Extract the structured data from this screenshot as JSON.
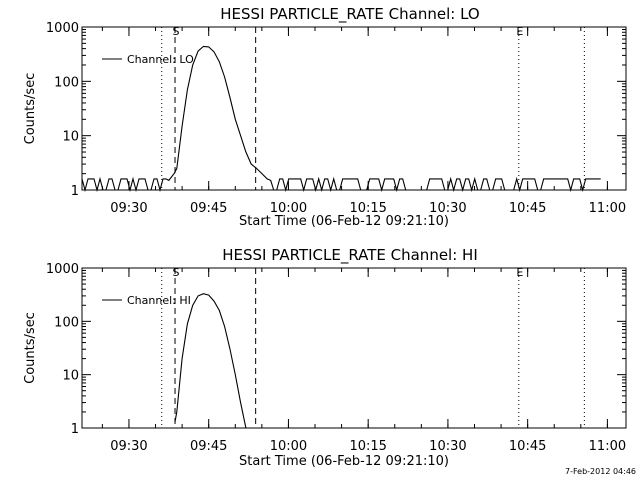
{
  "chart_data": [
    {
      "type": "line",
      "title": "HESSI PARTICLE_RATE Channel: LO",
      "xlabel": "Start Time (06-Feb-12 09:21:10)",
      "ylabel": "Counts/sec",
      "yscale": "log",
      "ylim": [
        1,
        1000
      ],
      "y_ticks": [
        "1",
        "10",
        "100",
        "1000"
      ],
      "x_ticks": [
        "09:30",
        "09:45",
        "10:00",
        "10:15",
        "10:30",
        "10:45",
        "11:00"
      ],
      "xlim": [
        "09:21:10",
        "11:03:30"
      ],
      "grid": false,
      "legend": "top-left",
      "series": [
        {
          "name": "Channel: LO",
          "x": [
            "09:21:10",
            "09:37:30",
            "09:38:30",
            "09:39:00",
            "09:40:00",
            "09:41:00",
            "09:42:00",
            "09:43:00",
            "09:44:00",
            "09:45:00",
            "09:46:00",
            "09:47:00",
            "09:48:00",
            "09:49:00",
            "09:50:00",
            "09:51:00",
            "09:52:00",
            "09:53:00",
            "09:54:00",
            "09:55:00",
            "09:56:00",
            "09:56:40",
            "10:59:00"
          ],
          "y": [
            1.5,
            1.5,
            2,
            2.5,
            15,
            70,
            200,
            360,
            440,
            430,
            350,
            230,
            120,
            50,
            20,
            10,
            5,
            3,
            2.5,
            2,
            1.6,
            1.5,
            1.5
          ],
          "noise_range": [
            1,
            1.6
          ]
        }
      ],
      "markers": [
        {
          "time": "09:36:10",
          "label": "",
          "style": "dotted"
        },
        {
          "time": "09:38:40",
          "label": "S",
          "style": "dashed"
        },
        {
          "time": "09:53:50",
          "label": "",
          "style": "dashed"
        },
        {
          "time": "10:43:20",
          "label": "E",
          "style": "dotted"
        },
        {
          "time": "10:55:40",
          "label": "",
          "style": "dotted"
        }
      ]
    },
    {
      "type": "line",
      "title": "HESSI PARTICLE_RATE Channel: HI",
      "xlabel": "Start Time (06-Feb-12 09:21:10)",
      "ylabel": "Counts/sec",
      "yscale": "log",
      "ylim": [
        1,
        1000
      ],
      "y_ticks": [
        "1",
        "10",
        "100",
        "1000"
      ],
      "x_ticks": [
        "09:30",
        "09:45",
        "10:00",
        "10:15",
        "10:30",
        "10:45",
        "11:00"
      ],
      "xlim": [
        "09:21:10",
        "11:03:30"
      ],
      "grid": false,
      "legend": "top-left",
      "series": [
        {
          "name": "Channel: HI",
          "x": [
            "09:38:40",
            "09:39:00",
            "09:40:00",
            "09:41:00",
            "09:42:00",
            "09:43:00",
            "09:44:00",
            "09:45:00",
            "09:46:00",
            "09:47:00",
            "09:48:00",
            "09:49:00",
            "09:50:00",
            "09:51:00",
            "09:52:00"
          ],
          "y": [
            1.3,
            2,
            20,
            90,
            200,
            300,
            330,
            310,
            240,
            160,
            80,
            30,
            10,
            3,
            1
          ],
          "noise_range": null
        }
      ],
      "markers": [
        {
          "time": "09:36:10",
          "label": "",
          "style": "dotted"
        },
        {
          "time": "09:38:40",
          "label": "S",
          "style": "dashed"
        },
        {
          "time": "09:53:50",
          "label": "",
          "style": "dashed"
        },
        {
          "time": "10:43:20",
          "label": "E",
          "style": "dotted"
        },
        {
          "time": "10:55:40",
          "label": "",
          "style": "dotted"
        }
      ]
    }
  ],
  "timestamp": "7-Feb-2012 04:46"
}
